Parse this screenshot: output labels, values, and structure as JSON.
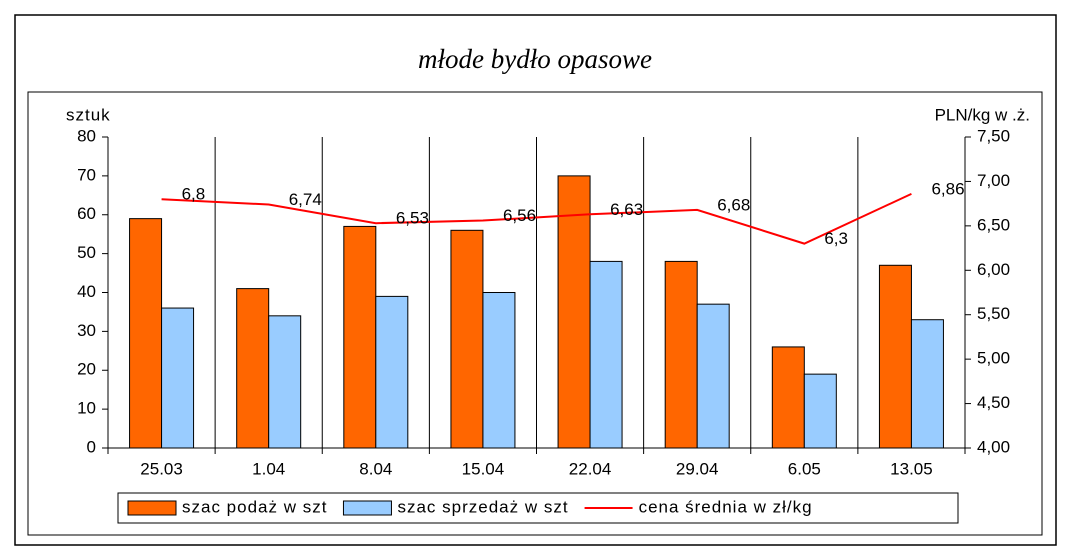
{
  "chart_data": {
    "type": "bar_line",
    "title": "młode bydło opasowe",
    "ylabel": "sztuk",
    "y2label": "PLN/kg w .ż.",
    "categories": [
      "25.03",
      "1.04",
      "8.04",
      "15.04",
      "22.04",
      "29.04",
      "6.05",
      "13.05"
    ],
    "series": [
      {
        "name": "szac podaż w szt",
        "type": "bar",
        "color": "#ff6600",
        "values": [
          59,
          41,
          57,
          56,
          70,
          48,
          26,
          47
        ]
      },
      {
        "name": "szac sprzedaż w szt",
        "type": "bar",
        "color": "#99ccff",
        "values": [
          36,
          34,
          39,
          40,
          48,
          37,
          19,
          33
        ]
      },
      {
        "name": "cena średnia w zł/kg",
        "type": "line",
        "axis": "y2",
        "color": "#ff0000",
        "values": [
          6.8,
          6.74,
          6.53,
          6.56,
          6.63,
          6.68,
          6.3,
          6.86
        ],
        "value_labels": [
          "6,8",
          "6,74",
          "6,53",
          "6,56",
          "6,63",
          "6,68",
          "6,3",
          "6,86"
        ]
      }
    ],
    "ylim": [
      0,
      80
    ],
    "yticks": [
      0,
      10,
      20,
      30,
      40,
      50,
      60,
      70,
      80
    ],
    "y2lim": [
      4,
      7.5
    ],
    "y2ticks": [
      {
        "value": 4,
        "label": "4,00"
      },
      {
        "value": 4.5,
        "label": "4,50"
      },
      {
        "value": 5,
        "label": "5,00"
      },
      {
        "value": 5.5,
        "label": "5,50"
      },
      {
        "value": 6,
        "label": "6,00"
      },
      {
        "value": 6.5,
        "label": "6,50"
      },
      {
        "value": 7,
        "label": "7,00"
      },
      {
        "value": 7.5,
        "label": "7,50"
      }
    ],
    "legend": "bottom"
  }
}
